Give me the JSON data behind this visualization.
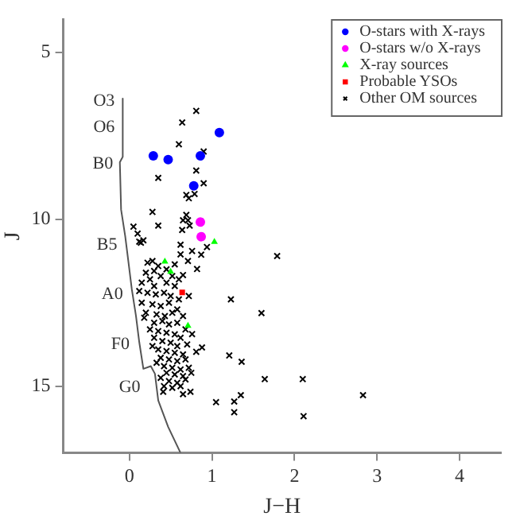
{
  "chart_data": {
    "type": "scatter",
    "xlabel": "J−H",
    "ylabel": "J",
    "xlim": [
      -0.8,
      4.5
    ],
    "ylim": [
      17,
      4
    ],
    "xticks": [
      0,
      1,
      2,
      3,
      4
    ],
    "yticks": [
      5,
      10,
      15
    ],
    "grid": false,
    "legend": "top right",
    "series": [
      {
        "name": "O-stars with X-rays",
        "color": "#0000ff",
        "marker": "circle",
        "x": [
          0.29,
          0.47,
          0.86,
          1.09,
          0.78
        ],
        "values": [
          8.1,
          8.21,
          8.1,
          7.4,
          9.0
        ]
      },
      {
        "name": "O-stars w/o X-rays",
        "color": "#ff00ff",
        "marker": "circle",
        "x": [
          0.86,
          0.87
        ],
        "values": [
          10.08,
          10.52
        ]
      },
      {
        "name": "X-ray sources",
        "color": "#00ff00",
        "marker": "triangle",
        "x": [
          1.03,
          0.43,
          0.5,
          0.71
        ],
        "values": [
          10.68,
          11.27,
          11.57,
          13.19
        ]
      },
      {
        "name": "Probable YSOs",
        "color": "#ff0000",
        "marker": "square",
        "x": [
          0.64
        ],
        "values": [
          12.19
        ]
      },
      {
        "name": "Other OM sources",
        "color": "#000000",
        "marker": "cross",
        "x": [
          0.81,
          0.64,
          0.6,
          0.9,
          0.35,
          0.81,
          0.9,
          0.79,
          0.72,
          0.69,
          0.28,
          0.35,
          0.64,
          0.69,
          0.65,
          0.71,
          0.73,
          0.05,
          0.1,
          0.12,
          0.17,
          0.14,
          0.62,
          0.76,
          0.94,
          0.87,
          1.79,
          0.71,
          0.62,
          0.82,
          0.65,
          1.23,
          1.6,
          1.21,
          1.36,
          1.64,
          2.1,
          2.83,
          1.05,
          1.27,
          1.35,
          1.27,
          2.11,
          0.88,
          0.81,
          0.76,
          0.74,
          0.65,
          0.41,
          0.22,
          0.28,
          0.35,
          0.3,
          0.2,
          0.25,
          0.38,
          0.45,
          0.15,
          0.3,
          0.55,
          0.6,
          0.55,
          0.12,
          0.22,
          0.32,
          0.42,
          0.5,
          0.6,
          0.15,
          0.28,
          0.38,
          0.48,
          0.58,
          0.2,
          0.33,
          0.43,
          0.52,
          0.65,
          0.3,
          0.4,
          0.48,
          0.58,
          0.68,
          0.35,
          0.45,
          0.55,
          0.62,
          0.3,
          0.4,
          0.5,
          0.58,
          0.7,
          0.35,
          0.45,
          0.55,
          0.65,
          0.38,
          0.48,
          0.58,
          0.68,
          0.42,
          0.52,
          0.62,
          0.72,
          0.45,
          0.55,
          0.65,
          0.48,
          0.58,
          0.68,
          0.42,
          0.52,
          0.62,
          0.38,
          0.75,
          0.33,
          0.28,
          0.25,
          0.18,
          0.72,
          0.45,
          0.52
        ],
        "values": [
          6.75,
          7.1,
          7.75,
          7.97,
          8.76,
          8.54,
          8.92,
          9.24,
          9.37,
          9.27,
          9.78,
          10.19,
          10.32,
          9.87,
          10.03,
          10.03,
          10.19,
          10.22,
          10.43,
          10.67,
          10.63,
          10.7,
          10.76,
          10.95,
          10.83,
          11.06,
          11.1,
          11.25,
          11.05,
          11.49,
          11.67,
          12.4,
          12.81,
          14.08,
          14.27,
          14.79,
          14.79,
          15.27,
          15.48,
          15.46,
          15.27,
          15.78,
          15.9,
          13.84,
          13.97,
          13.44,
          15.17,
          15.24,
          15.17,
          11.3,
          11.25,
          11.4,
          11.55,
          11.6,
          11.8,
          11.7,
          11.9,
          11.9,
          12.0,
          11.35,
          11.8,
          12.0,
          12.15,
          12.2,
          12.25,
          12.2,
          12.3,
          12.4,
          12.5,
          12.55,
          12.6,
          12.5,
          12.7,
          12.8,
          12.85,
          12.9,
          12.8,
          12.9,
          13.1,
          13.05,
          13.15,
          13.1,
          13.3,
          13.35,
          13.4,
          13.45,
          13.55,
          13.55,
          13.65,
          13.7,
          13.8,
          13.75,
          13.9,
          13.95,
          14.0,
          14.05,
          14.15,
          14.2,
          14.25,
          14.2,
          14.4,
          14.45,
          14.5,
          14.45,
          14.6,
          14.65,
          14.7,
          14.85,
          14.9,
          14.8,
          15.0,
          15.05,
          15.0,
          14.75,
          14.6,
          14.3,
          13.8,
          13.3,
          12.95,
          12.3,
          11.5,
          11.7
        ]
      },
      {
        "type": "line",
        "color": "#555555",
        "marker": "none",
        "x": [
          -0.08,
          -0.08,
          -0.115,
          -0.1,
          -0.05,
          -0.01,
          0.03,
          0.08,
          0.12,
          0.17,
          0.26,
          0.31,
          0.35,
          0.47,
          0.62
        ],
        "values": [
          6.38,
          8.13,
          8.29,
          9.71,
          10.51,
          11.3,
          12.1,
          12.89,
          13.68,
          14.48,
          14.4,
          14.63,
          15.43,
          16.22,
          17
        ]
      }
    ],
    "annotations": [
      {
        "text": "O3",
        "x": -0.08,
        "y": 6.46
      },
      {
        "text": "O6",
        "x": -0.08,
        "y": 7.25
      },
      {
        "text": "B0",
        "x": -0.1,
        "y": 8.33
      },
      {
        "text": "B5",
        "x": -0.05,
        "y": 10.78
      },
      {
        "text": "A0",
        "x": 0.02,
        "y": 12.25
      },
      {
        "text": "F0",
        "x": 0.1,
        "y": 13.76
      },
      {
        "text": "G0",
        "x": 0.23,
        "y": 15.03
      }
    ]
  }
}
